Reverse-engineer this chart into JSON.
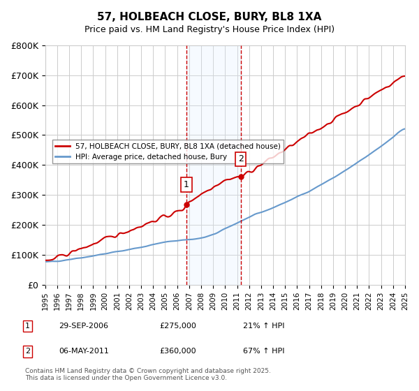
{
  "title": "57, HOLBEACH CLOSE, BURY, BL8 1XA",
  "subtitle": "Price paid vs. HM Land Registry's House Price Index (HPI)",
  "ylabel": "",
  "xlabel": "",
  "ylim": [
    0,
    800000
  ],
  "yticks": [
    0,
    100000,
    200000,
    300000,
    400000,
    500000,
    600000,
    700000,
    800000
  ],
  "ytick_labels": [
    "£0",
    "£100K",
    "£200K",
    "£300K",
    "£400K",
    "£500K",
    "£600K",
    "£700K",
    "£800K"
  ],
  "line1_color": "#cc0000",
  "line2_color": "#6699cc",
  "transaction1_date_idx": 11.75,
  "transaction2_date_idx": 16.33,
  "transaction1_price": 275000,
  "transaction2_price": 360000,
  "transaction1_label": "1",
  "transaction2_label": "2",
  "transaction1_date_str": "29-SEP-2006",
  "transaction2_date_str": "06-MAY-2011",
  "transaction1_hpi_pct": "21% ↑ HPI",
  "transaction2_hpi_pct": "67% ↑ HPI",
  "legend_line1": "57, HOLBEACH CLOSE, BURY, BL8 1XA (detached house)",
  "legend_line2": "HPI: Average price, detached house, Bury",
  "footer": "Contains HM Land Registry data © Crown copyright and database right 2025.\nThis data is licensed under the Open Government Licence v3.0.",
  "bg_color": "#ffffff",
  "grid_color": "#cccccc",
  "shade_color": "#ddeeff",
  "marker_box_color": "#cc0000"
}
